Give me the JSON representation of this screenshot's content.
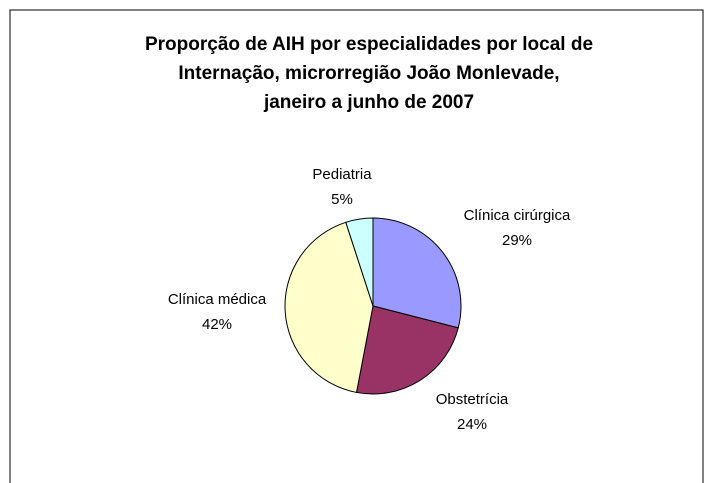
{
  "chart_data": {
    "type": "pie",
    "title": [
      "Proporção de AIH por especialidades por local de",
      "Internação, microrregião João Monlevade,",
      "janeiro a junho de 2007"
    ],
    "categories": [
      "Clínica cirúrgica",
      "Obstetrícia",
      "Clínica médica",
      "Pediatria"
    ],
    "values": [
      29,
      24,
      42,
      5
    ],
    "value_labels": [
      "29%",
      "24%",
      "42%",
      "5%"
    ],
    "colors": [
      "#9999ff",
      "#993366",
      "#ffffcc",
      "#ccffff"
    ]
  }
}
